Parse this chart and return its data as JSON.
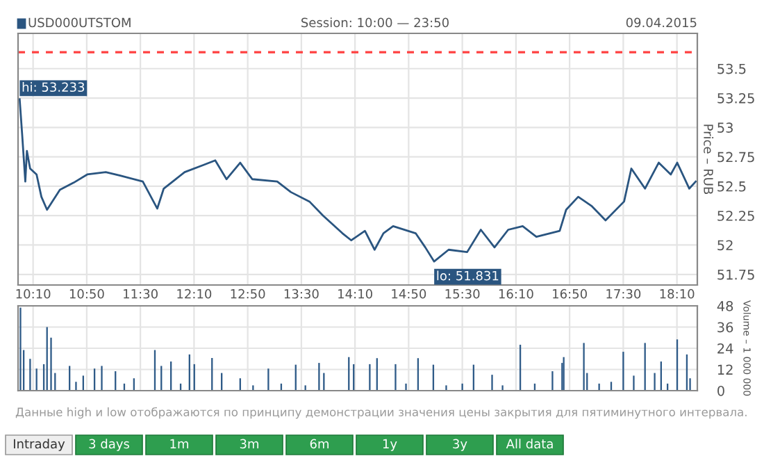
{
  "chart_data": [
    {
      "type": "line",
      "title": "USD000UTSTOM",
      "subtitle": "Session: 10:00 — 23:50",
      "ylabel": "Price – RUB",
      "x": [
        10.0,
        10.03,
        10.07,
        10.09,
        10.13,
        10.21,
        10.27,
        10.34,
        10.5,
        10.67,
        10.84,
        11.07,
        11.25,
        11.53,
        11.71,
        11.79,
        12.05,
        12.28,
        12.43,
        12.57,
        12.74,
        12.89,
        13.2,
        13.37,
        13.6,
        13.77,
        14.01,
        14.12,
        14.29,
        14.41,
        14.52,
        14.64,
        14.92,
        15.04,
        15.15,
        15.33,
        15.56,
        15.73,
        15.9,
        16.07,
        16.25,
        16.42,
        16.71,
        16.79,
        16.94,
        17.11,
        17.28,
        17.51,
        17.6,
        17.77,
        17.94,
        18.09,
        18.17,
        18.32,
        18.4
      ],
      "series": [
        {
          "color": "#2a5580",
          "values": [
            53.24,
            52.95,
            52.54,
            52.8,
            52.65,
            52.6,
            52.41,
            52.3,
            52.47,
            52.53,
            52.6,
            52.62,
            52.59,
            52.54,
            52.31,
            52.48,
            52.62,
            52.68,
            52.72,
            52.56,
            52.7,
            52.56,
            52.54,
            52.45,
            52.37,
            52.25,
            52.1,
            52.04,
            52.12,
            51.96,
            52.1,
            52.16,
            52.1,
            51.98,
            51.86,
            51.96,
            51.94,
            52.13,
            51.98,
            52.13,
            52.16,
            52.07,
            52.12,
            52.3,
            52.41,
            52.33,
            52.21,
            52.37,
            52.65,
            52.48,
            52.7,
            52.6,
            52.7,
            52.48,
            52.54
          ]
        }
      ],
      "xlim": [
        9.98,
        18.42
      ],
      "ylim": [
        51.66,
        53.8
      ],
      "xticks": [
        {
          "value": 10.1667,
          "label": "10:10"
        },
        {
          "value": 10.8333,
          "label": "10:50"
        },
        {
          "value": 11.5,
          "label": "11:30"
        },
        {
          "value": 12.1667,
          "label": "12:10"
        },
        {
          "value": 12.8333,
          "label": "12:50"
        },
        {
          "value": 13.5,
          "label": "13:30"
        },
        {
          "value": 14.1667,
          "label": "14:10"
        },
        {
          "value": 14.8333,
          "label": "14:50"
        },
        {
          "value": 15.5,
          "label": "15:30"
        },
        {
          "value": 16.1667,
          "label": "16:10"
        },
        {
          "value": 16.8333,
          "label": "16:50"
        },
        {
          "value": 17.5,
          "label": "17:30"
        },
        {
          "value": 18.1667,
          "label": "18:10"
        }
      ],
      "yticks": [
        51.75,
        52,
        52.25,
        52.5,
        52.75,
        53,
        53.25,
        53.5
      ],
      "ref_lines": [
        {
          "axis": "y",
          "value": 53.64,
          "color": "#ff4040",
          "line_style": "dashed"
        }
      ],
      "annotations": [
        {
          "text": "hi: 53.233",
          "x": 10.0,
          "y": 53.233
        },
        {
          "text": "lo: 51.831",
          "x": 15.15,
          "y": 51.831
        },
        "09.04.2015"
      ],
      "grid": true,
      "marker": "none",
      "line_style": "solid"
    },
    {
      "type": "bar",
      "ylabel": "Volume – 1 000 000",
      "x": [
        10.01,
        10.05,
        10.13,
        10.21,
        10.3,
        10.34,
        10.39,
        10.44,
        10.62,
        10.7,
        10.79,
        10.93,
        11.02,
        11.19,
        11.3,
        11.42,
        11.68,
        11.76,
        11.88,
        12.0,
        12.11,
        12.17,
        12.39,
        12.51,
        12.74,
        12.9,
        13.09,
        13.25,
        13.43,
        13.55,
        13.72,
        13.78,
        14.09,
        14.15,
        14.35,
        14.44,
        14.67,
        14.8,
        14.95,
        15.14,
        15.3,
        15.5,
        15.64,
        15.87,
        16.0,
        16.22,
        16.4,
        16.62,
        16.74,
        16.76,
        17.01,
        17.05,
        17.2,
        17.35,
        17.5,
        17.63,
        17.77,
        17.89,
        17.97,
        18.05,
        18.17,
        18.29,
        18.33
      ],
      "series": [
        {
          "color": "#2f5b88",
          "values": [
            47,
            23,
            18,
            12.5,
            15,
            36,
            30,
            10,
            14,
            5,
            8.5,
            12.5,
            14,
            11,
            4,
            7,
            23,
            14,
            16.5,
            4,
            20.5,
            15,
            18.5,
            10,
            7,
            3,
            12.5,
            4,
            14.7,
            3,
            15.7,
            10,
            19,
            15,
            15,
            18.4,
            15,
            4,
            18.4,
            14.7,
            3,
            4,
            14.7,
            9,
            3,
            26,
            4,
            11,
            15.7,
            19,
            27,
            10,
            4,
            5,
            22,
            8.5,
            27,
            10,
            16.5,
            4,
            29,
            20.5,
            7
          ]
        }
      ],
      "xlim": [
        9.98,
        18.42
      ],
      "ylim": [
        0,
        48
      ],
      "yticks": [
        0,
        12,
        24,
        36,
        48
      ],
      "tick_labels": "y",
      "grid": true,
      "annotations": [
        "Данные high и low отображаются по принципу демонстрации значения цены закрытия для пятиминутного интервала.",
        "Intraday",
        "3 days",
        "1m",
        "3m",
        "6m",
        "1y",
        "3y",
        "All data"
      ]
    }
  ]
}
